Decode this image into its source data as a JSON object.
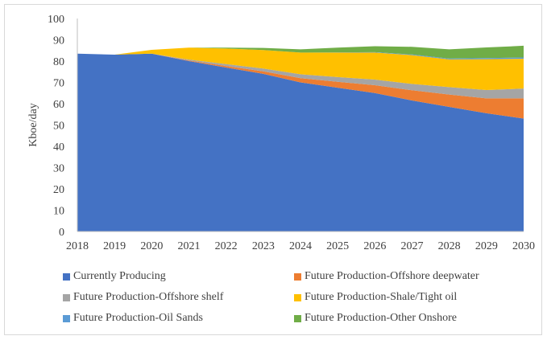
{
  "chart_data": {
    "type": "area",
    "stacked": true,
    "title": "",
    "xlabel": "",
    "ylabel": "Kboe/day",
    "ylim": [
      0,
      100
    ],
    "yticks": [
      0,
      10,
      20,
      30,
      40,
      50,
      60,
      70,
      80,
      90,
      100
    ],
    "x": [
      "2018",
      "2019",
      "2020",
      "2021",
      "2022",
      "2023",
      "2024",
      "2025",
      "2026",
      "2027",
      "2028",
      "2029",
      "2030"
    ],
    "legend_position": "bottom",
    "series": [
      {
        "name": "Currently Producing",
        "color": "#4472c4",
        "values": [
          83.5,
          83,
          83.5,
          80,
          77,
          74,
          70,
          67.5,
          65,
          61.5,
          58.5,
          55.5,
          53
        ]
      },
      {
        "name": "Future Production-Offshore deepwater",
        "color": "#ed7d31",
        "values": [
          0,
          0,
          0,
          0.3,
          0.7,
          1.2,
          2,
          2.8,
          3.7,
          4.8,
          5.8,
          7,
          9.5
        ]
      },
      {
        "name": "Future Production-Offshore shelf",
        "color": "#a5a5a5",
        "values": [
          0,
          0,
          0,
          0.4,
          0.9,
          1.3,
          1.8,
          2.2,
          2.6,
          3,
          3.5,
          3.9,
          4.6
        ]
      },
      {
        "name": "Future Production-Shale/Tight oil",
        "color": "#ffc000",
        "values": [
          0,
          0,
          1.8,
          5.6,
          7.3,
          8.7,
          10.2,
          11.5,
          12.7,
          13.5,
          13,
          14.5,
          14
        ]
      },
      {
        "name": "Future Production-Oil Sands",
        "color": "#5b9bd5",
        "values": [
          0,
          0,
          0,
          0,
          0,
          0,
          0,
          0.1,
          0.2,
          0.3,
          0.4,
          0.5,
          0.6
        ]
      },
      {
        "name": "Future Production-Other Onshore",
        "color": "#70ad47",
        "values": [
          0,
          0,
          0,
          0,
          0.4,
          1,
          1.5,
          2.2,
          2.8,
          3.6,
          4.3,
          5,
          5.5
        ]
      }
    ]
  }
}
